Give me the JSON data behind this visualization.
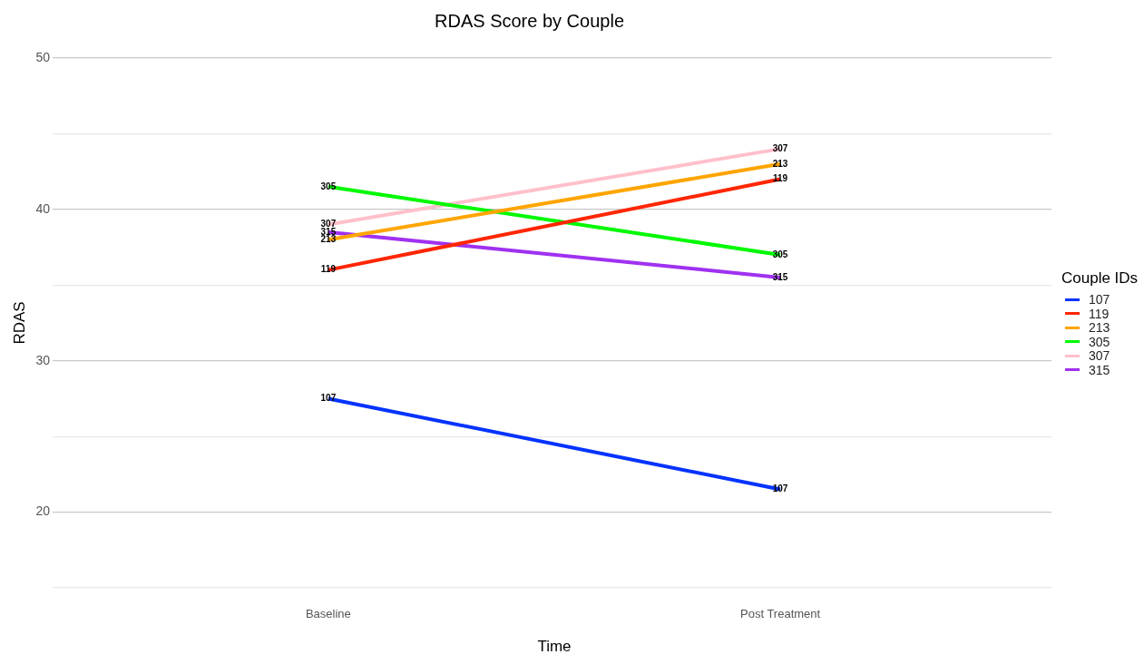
{
  "chart_data": {
    "type": "line",
    "title": "RDAS Score by Couple",
    "xlabel": "Time",
    "ylabel": "RDAS",
    "legend_title": "Couple IDs",
    "legend": "right",
    "grid": "y",
    "marker": "none",
    "line_style": "solid",
    "categories": [
      "Baseline",
      "Post Treatment"
    ],
    "ylim": [
      15,
      50
    ],
    "yticks": [
      {
        "value": 15,
        "label": null
      },
      20,
      {
        "value": 25,
        "label": null
      },
      30,
      {
        "value": 35,
        "label": null
      },
      40,
      {
        "value": 45,
        "label": null
      },
      50
    ],
    "series": [
      {
        "name": "107",
        "color": "#0433ff",
        "values": [
          27.5,
          21.5
        ]
      },
      {
        "name": "119",
        "color": "#ff2600",
        "values": [
          36,
          42
        ]
      },
      {
        "name": "213",
        "color": "#ffa500",
        "values": [
          38,
          43
        ]
      },
      {
        "name": "305",
        "color": "#00f900",
        "values": [
          41.5,
          37
        ]
      },
      {
        "name": "307",
        "color": "#ffc0cb",
        "values": [
          39,
          44
        ]
      },
      {
        "name": "315",
        "color": "#a031f0",
        "values": [
          38.5,
          35.5
        ]
      }
    ],
    "annotations": [
      {
        "text": "107",
        "x": "Baseline",
        "y": 27.5
      },
      {
        "text": "107",
        "x": "Post Treatment",
        "y": 21.5
      },
      {
        "text": "119",
        "x": "Baseline",
        "y": 36
      },
      {
        "text": "119",
        "x": "Post Treatment",
        "y": 42
      },
      {
        "text": "213",
        "x": "Baseline",
        "y": 38
      },
      {
        "text": "213",
        "x": "Post Treatment",
        "y": 43
      },
      {
        "text": "305",
        "x": "Baseline",
        "y": 41.5
      },
      {
        "text": "305",
        "x": "Post Treatment",
        "y": 37
      },
      {
        "text": "307",
        "x": "Baseline",
        "y": 39
      },
      {
        "text": "307",
        "x": "Post Treatment",
        "y": 44
      },
      {
        "text": "315",
        "x": "Baseline",
        "y": 38.5
      },
      {
        "text": "315",
        "x": "Post Treatment",
        "y": 35.5
      }
    ]
  }
}
